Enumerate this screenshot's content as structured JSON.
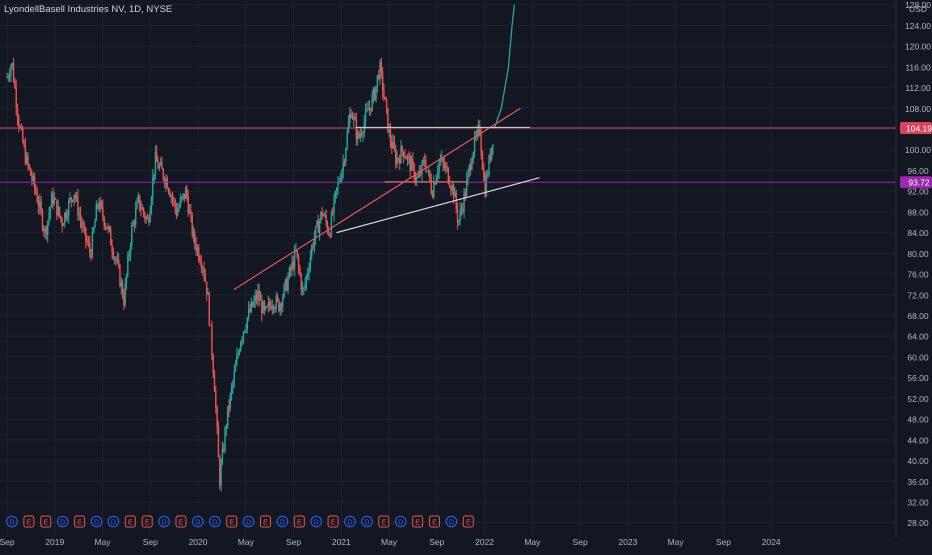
{
  "header": {
    "symbol_title": "LyondellBasell Industries NV, 1D, NYSE",
    "currency": "USD"
  },
  "colors": {
    "background": "#131722",
    "grid": "#1e222d",
    "axis_text": "#b2b5be",
    "up": "#26a69a",
    "down": "#ef5350",
    "projection": "#26a69a",
    "line_resistance": "#c9c9c9",
    "line_support": "#d6d6d6",
    "line_red": "#e0555a",
    "level_red": "#d8455a",
    "level_purple": "#9c27b0"
  },
  "chart_data": {
    "type": "candlestick",
    "y_ticks": [
      28,
      32,
      36,
      40,
      44,
      48,
      52,
      56,
      60,
      64,
      68,
      72,
      76,
      80,
      84,
      88,
      92,
      96,
      100,
      104,
      108,
      112,
      116,
      120,
      124,
      128
    ],
    "y_tick_labels": [
      "28.00",
      "32.00",
      "36.00",
      "40.00",
      "44.00",
      "48.00",
      "52.00",
      "56.00",
      "60.00",
      "64.00",
      "68.00",
      "72.00",
      "76.00",
      "80.00",
      "84.00",
      "88.00",
      "92.00",
      "96.00",
      "100.00",
      "104.00",
      "108.00",
      "112.00",
      "116.00",
      "120.00",
      "124.00",
      "128.00"
    ],
    "x_tick_labels": [
      "Sep",
      "2019",
      "May",
      "Sep",
      "2020",
      "May",
      "Sep",
      "2021",
      "May",
      "Sep",
      "2022",
      "May",
      "Sep",
      "2023",
      "May",
      "Sep",
      "2024"
    ],
    "x_tick_months": [
      0,
      4,
      8,
      12,
      16,
      20,
      24,
      28,
      32,
      36,
      40,
      44,
      48,
      52,
      56,
      60,
      64
    ],
    "start_month": "2018-09",
    "price_anchors": [
      [
        0,
        114
      ],
      [
        0.4,
        117
      ],
      [
        1,
        105
      ],
      [
        1.6,
        98
      ],
      [
        2.4,
        92
      ],
      [
        3.2,
        84
      ],
      [
        3.8,
        91
      ],
      [
        4.6,
        86
      ],
      [
        5.6,
        92
      ],
      [
        6.4,
        84
      ],
      [
        7,
        80
      ],
      [
        7.6,
        90
      ],
      [
        8.4,
        85
      ],
      [
        9.2,
        78
      ],
      [
        9.8,
        71
      ],
      [
        10.4,
        84
      ],
      [
        11,
        90
      ],
      [
        11.8,
        86
      ],
      [
        12.4,
        98
      ],
      [
        13.4,
        94
      ],
      [
        14.2,
        88
      ],
      [
        15,
        92
      ],
      [
        15.6,
        83
      ],
      [
        16.4,
        78
      ],
      [
        16.8,
        72
      ],
      [
        17.4,
        54
      ],
      [
        17.8,
        36
      ],
      [
        18.4,
        48
      ],
      [
        19,
        56
      ],
      [
        19.6,
        64
      ],
      [
        20.2,
        68
      ],
      [
        21,
        72
      ],
      [
        21.6,
        68
      ],
      [
        22.2,
        71
      ],
      [
        22.8,
        70
      ],
      [
        23.4,
        74
      ],
      [
        24.2,
        80
      ],
      [
        24.8,
        72
      ],
      [
        25.6,
        82
      ],
      [
        26.4,
        88
      ],
      [
        27,
        84
      ],
      [
        27.6,
        92
      ],
      [
        28.2,
        98
      ],
      [
        28.8,
        108
      ],
      [
        29.4,
        102
      ],
      [
        30,
        106
      ],
      [
        30.8,
        111
      ],
      [
        31.2,
        116
      ],
      [
        31.6,
        110
      ],
      [
        32,
        103
      ],
      [
        32.6,
        98
      ],
      [
        33.2,
        100
      ],
      [
        33.8,
        97
      ],
      [
        34.4,
        94
      ],
      [
        35,
        98
      ],
      [
        35.6,
        92
      ],
      [
        36.2,
        98
      ],
      [
        36.8,
        96
      ],
      [
        37.4,
        92
      ],
      [
        37.8,
        86
      ],
      [
        38.4,
        92
      ],
      [
        39,
        100
      ],
      [
        39.6,
        104
      ],
      [
        40,
        92
      ],
      [
        40.4,
        98
      ],
      [
        40.8,
        104
      ]
    ],
    "projection_anchors": [
      [
        40.8,
        104
      ],
      [
        41.4,
        108
      ],
      [
        42,
        116
      ],
      [
        42.3,
        124
      ],
      [
        42.5,
        128
      ]
    ],
    "levels": [
      {
        "label": "104.19",
        "value": 104.19,
        "color": "#d8455a"
      },
      {
        "label": "93.72",
        "value": 93.72,
        "color": "#9c27b0"
      }
    ],
    "trend_lines": [
      {
        "name": "rising-resistance",
        "color": "#e0555a",
        "points": [
          [
            19,
            73
          ],
          [
            43,
            108
          ]
        ]
      },
      {
        "name": "flat-resistance",
        "color": "#c9c9c9",
        "points": [
          [
            29.2,
            104.3
          ],
          [
            43.8,
            104.3
          ]
        ]
      },
      {
        "name": "rising-support",
        "color": "#d6d6d6",
        "points": [
          [
            27.6,
            84
          ],
          [
            44.6,
            94.6
          ]
        ]
      },
      {
        "name": "short-red-segment",
        "color": "#d46a6a",
        "points": [
          [
            31.6,
            93.8
          ],
          [
            38.6,
            93.8
          ]
        ]
      }
    ],
    "events": [
      "D",
      "E",
      "E",
      "D",
      "E",
      "D",
      "D",
      "E",
      "E",
      "D",
      "E",
      "D",
      "D",
      "E",
      "D",
      "E",
      "D",
      "E",
      "D",
      "E",
      "D",
      "D",
      "E",
      "D",
      "E",
      "E",
      "D",
      "E"
    ]
  }
}
